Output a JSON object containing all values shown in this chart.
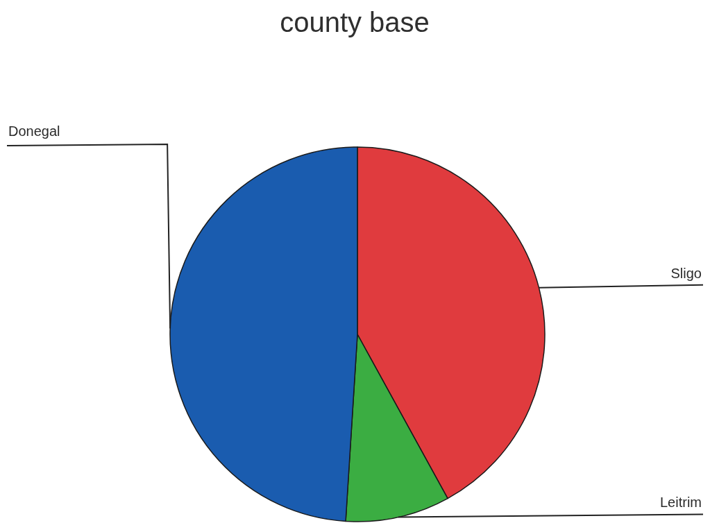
{
  "chart_data": {
    "type": "pie",
    "title": "county base",
    "categories": [
      "Sligo",
      "Leitrim",
      "Donegal"
    ],
    "values": [
      42,
      9,
      49
    ],
    "colors": [
      "#e03b3e",
      "#3bad42",
      "#1a5caf"
    ]
  }
}
